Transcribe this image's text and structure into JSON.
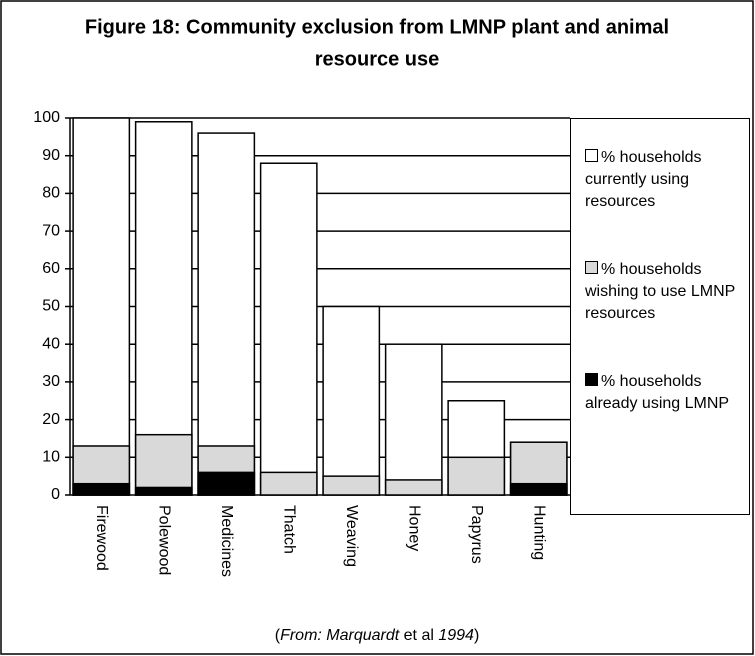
{
  "chart_data": {
    "type": "bar",
    "title_lines": [
      "Figure 18: Community exclusion from LMNP plant and animal",
      "resource use"
    ],
    "categories": [
      "Firewood",
      "Polewood",
      "Medicines",
      "Thatch",
      "Weaving",
      "Honey",
      "Papyrus",
      "Hunting"
    ],
    "series": [
      {
        "name": "% households currently using resources",
        "color": "#ffffff",
        "values": [
          100,
          99,
          96,
          88,
          50,
          40,
          25,
          14
        ]
      },
      {
        "name": "% households wishing to use LMNP resources",
        "color": "#d9d9d9",
        "values": [
          13,
          16,
          13,
          6,
          5,
          4,
          10,
          14
        ]
      },
      {
        "name": "% households already using LMNP",
        "color": "#000000",
        "values": [
          3,
          2,
          6,
          0,
          0,
          0,
          0,
          3
        ]
      }
    ],
    "overlap": true,
    "ylim": [
      0,
      100
    ],
    "yticks": [
      0,
      10,
      20,
      30,
      40,
      50,
      60,
      70,
      80,
      90,
      100
    ],
    "grid": true,
    "source_parts": [
      {
        "text": "(",
        "italic": false
      },
      {
        "text": "From: Marquardt",
        "italic": true
      },
      {
        "text": " et al ",
        "italic": false
      },
      {
        "text": "1994",
        "italic": true
      },
      {
        "text": ")",
        "italic": false
      }
    ]
  }
}
